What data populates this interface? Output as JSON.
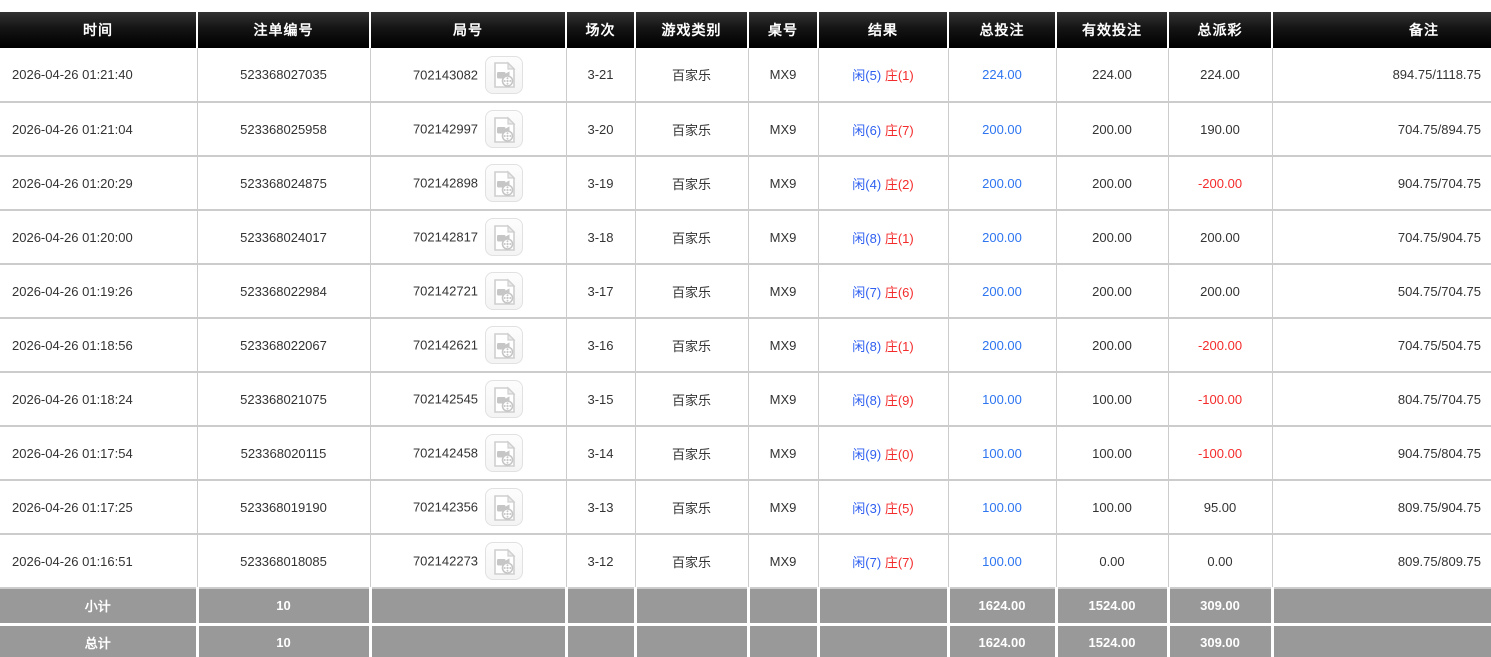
{
  "colors": {
    "header_bg": "#000000",
    "footer_bg": "#999999",
    "player_blue": "#2e5ff0",
    "banker_red": "#f42b2b",
    "amount_blue": "#2e75f0",
    "negative_red": "#f42b2b",
    "row_border": "#cccccc"
  },
  "table": {
    "columns": [
      {
        "key": "time",
        "label": "时间"
      },
      {
        "key": "bet_no",
        "label": "注单编号"
      },
      {
        "key": "round_no",
        "label": "局号"
      },
      {
        "key": "session",
        "label": "场次"
      },
      {
        "key": "game_type",
        "label": "游戏类别"
      },
      {
        "key": "table_no",
        "label": "桌号"
      },
      {
        "key": "result",
        "label": "结果"
      },
      {
        "key": "total_bet",
        "label": "总投注"
      },
      {
        "key": "valid_bet",
        "label": "有效投注"
      },
      {
        "key": "total_payout",
        "label": "总派彩"
      },
      {
        "key": "remark",
        "label": "备注"
      }
    ],
    "video_icon_name": "video-replay-icon",
    "rows": [
      {
        "time": "2026-04-26 01:21:40",
        "bet_no": "523368027035",
        "round_no": "702143082",
        "session": "3-21",
        "game_type": "百家乐",
        "table_no": "MX9",
        "result": {
          "player": "闲(5)",
          "banker": "庄(1)"
        },
        "total_bet": "224.00",
        "valid_bet": "224.00",
        "total_payout": "224.00",
        "remark": "894.75/1118.75"
      },
      {
        "time": "2026-04-26 01:21:04",
        "bet_no": "523368025958",
        "round_no": "702142997",
        "session": "3-20",
        "game_type": "百家乐",
        "table_no": "MX9",
        "result": {
          "player": "闲(6)",
          "banker": "庄(7)"
        },
        "total_bet": "200.00",
        "valid_bet": "200.00",
        "total_payout": "190.00",
        "remark": "704.75/894.75"
      },
      {
        "time": "2026-04-26 01:20:29",
        "bet_no": "523368024875",
        "round_no": "702142898",
        "session": "3-19",
        "game_type": "百家乐",
        "table_no": "MX9",
        "result": {
          "player": "闲(4)",
          "banker": "庄(2)"
        },
        "total_bet": "200.00",
        "valid_bet": "200.00",
        "total_payout": "-200.00",
        "remark": "904.75/704.75"
      },
      {
        "time": "2026-04-26 01:20:00",
        "bet_no": "523368024017",
        "round_no": "702142817",
        "session": "3-18",
        "game_type": "百家乐",
        "table_no": "MX9",
        "result": {
          "player": "闲(8)",
          "banker": "庄(1)"
        },
        "total_bet": "200.00",
        "valid_bet": "200.00",
        "total_payout": "200.00",
        "remark": "704.75/904.75"
      },
      {
        "time": "2026-04-26 01:19:26",
        "bet_no": "523368022984",
        "round_no": "702142721",
        "session": "3-17",
        "game_type": "百家乐",
        "table_no": "MX9",
        "result": {
          "player": "闲(7)",
          "banker": "庄(6)"
        },
        "total_bet": "200.00",
        "valid_bet": "200.00",
        "total_payout": "200.00",
        "remark": "504.75/704.75"
      },
      {
        "time": "2026-04-26 01:18:56",
        "bet_no": "523368022067",
        "round_no": "702142621",
        "session": "3-16",
        "game_type": "百家乐",
        "table_no": "MX9",
        "result": {
          "player": "闲(8)",
          "banker": "庄(1)"
        },
        "total_bet": "200.00",
        "valid_bet": "200.00",
        "total_payout": "-200.00",
        "remark": "704.75/504.75"
      },
      {
        "time": "2026-04-26 01:18:24",
        "bet_no": "523368021075",
        "round_no": "702142545",
        "session": "3-15",
        "game_type": "百家乐",
        "table_no": "MX9",
        "result": {
          "player": "闲(8)",
          "banker": "庄(9)"
        },
        "total_bet": "100.00",
        "valid_bet": "100.00",
        "total_payout": "-100.00",
        "remark": "804.75/704.75"
      },
      {
        "time": "2026-04-26 01:17:54",
        "bet_no": "523368020115",
        "round_no": "702142458",
        "session": "3-14",
        "game_type": "百家乐",
        "table_no": "MX9",
        "result": {
          "player": "闲(9)",
          "banker": "庄(0)"
        },
        "total_bet": "100.00",
        "valid_bet": "100.00",
        "total_payout": "-100.00",
        "remark": "904.75/804.75"
      },
      {
        "time": "2026-04-26 01:17:25",
        "bet_no": "523368019190",
        "round_no": "702142356",
        "session": "3-13",
        "game_type": "百家乐",
        "table_no": "MX9",
        "result": {
          "player": "闲(3)",
          "banker": "庄(5)"
        },
        "total_bet": "100.00",
        "valid_bet": "100.00",
        "total_payout": "95.00",
        "remark": "809.75/904.75"
      },
      {
        "time": "2026-04-26 01:16:51",
        "bet_no": "523368018085",
        "round_no": "702142273",
        "session": "3-12",
        "game_type": "百家乐",
        "table_no": "MX9",
        "result": {
          "player": "闲(7)",
          "banker": "庄(7)"
        },
        "total_bet": "100.00",
        "valid_bet": "0.00",
        "total_payout": "0.00",
        "remark": "809.75/809.75"
      }
    ],
    "footer": [
      {
        "label": "小计",
        "count": "10",
        "total_bet": "1624.00",
        "valid_bet": "1524.00",
        "total_payout": "309.00"
      },
      {
        "label": "总计",
        "count": "10",
        "total_bet": "1624.00",
        "valid_bet": "1524.00",
        "total_payout": "309.00"
      }
    ]
  }
}
